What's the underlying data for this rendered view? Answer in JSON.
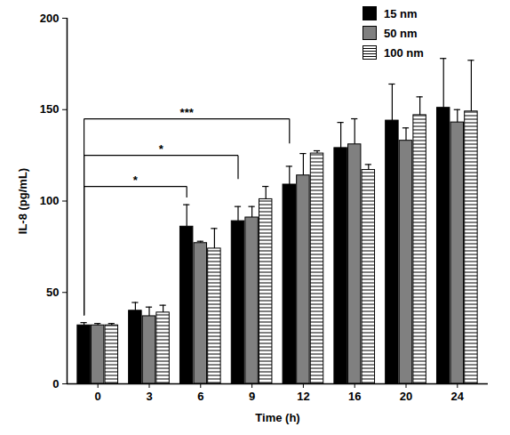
{
  "chart_data": {
    "type": "bar",
    "x_label": "Time (h)",
    "y_label": "IL-8 (pg/mL)",
    "categories": [
      "0",
      "3",
      "6",
      "9",
      "12",
      "16",
      "20",
      "24"
    ],
    "series": [
      {
        "name": "15 nm",
        "color": "#000000",
        "values": [
          32,
          40,
          86,
          89,
          109,
          129,
          144,
          151
        ],
        "errors": [
          1.5,
          4.5,
          12,
          8,
          10,
          14,
          20,
          27
        ]
      },
      {
        "name": "50 nm",
        "color": "#808080",
        "values": [
          32,
          37,
          77,
          91,
          114,
          131,
          133,
          143
        ],
        "errors": [
          1,
          5,
          1,
          6,
          12,
          14,
          7,
          7
        ]
      },
      {
        "name": "100 nm",
        "color": "#ffffff",
        "line_style": "hatched",
        "values": [
          32,
          39,
          74,
          101,
          126,
          117,
          147,
          149
        ],
        "errors": [
          1,
          4,
          11,
          7,
          1.5,
          3,
          10,
          28
        ]
      }
    ],
    "ylim": [
      0,
      200
    ],
    "yticks": [
      0,
      50,
      100,
      150,
      200
    ],
    "legend": "top-right",
    "annotations": [
      {
        "from": "0",
        "to": "6",
        "label": "*",
        "y": 108
      },
      {
        "from": "0",
        "to": "9",
        "label": "*",
        "y": 125
      },
      {
        "from": "0",
        "to": "12",
        "label": "***",
        "y": 145
      }
    ]
  }
}
